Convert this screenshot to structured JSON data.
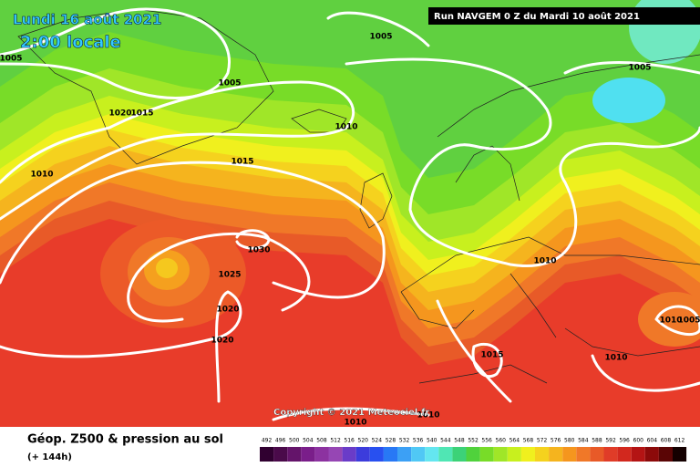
{
  "header": {
    "date": "Lundi 16 août 2021",
    "time": "2:00 locale",
    "run": "Run NAVGEM 0 Z du Mardi 10 août 2021"
  },
  "copyright": "Copyright © 2021 Meteociel.fr",
  "isobar_labels": [
    1005,
    1005,
    1005,
    1020,
    1015,
    1010,
    1010,
    1005,
    1015,
    1030,
    1025,
    1020,
    1020,
    1010,
    1015,
    1010,
    1010,
    1005,
    1010,
    1010
  ],
  "footer": {
    "title": "Géop. Z500 & pression au sol",
    "lead": "(+ 144h)"
  },
  "colorbar": [
    {
      "value": 492,
      "color": "#300030"
    },
    {
      "value": 496,
      "color": "#4a0a4a"
    },
    {
      "value": 500,
      "color": "#64146a"
    },
    {
      "value": 504,
      "color": "#7a1e8a"
    },
    {
      "value": 508,
      "color": "#8c32a0"
    },
    {
      "value": 512,
      "color": "#9646b4"
    },
    {
      "value": 516,
      "color": "#6a3cc8"
    },
    {
      "value": 520,
      "color": "#3c3cdc"
    },
    {
      "value": 524,
      "color": "#2850f0"
    },
    {
      "value": 528,
      "color": "#2878f5"
    },
    {
      "value": 532,
      "color": "#3ca0f5"
    },
    {
      "value": 536,
      "color": "#50c8f5"
    },
    {
      "value": 540,
      "color": "#64e6f0"
    },
    {
      "value": 544,
      "color": "#50e6b4"
    },
    {
      "value": 548,
      "color": "#3cd278"
    },
    {
      "value": 552,
      "color": "#50d23c"
    },
    {
      "value": 556,
      "color": "#78dc28"
    },
    {
      "value": 560,
      "color": "#a0e628"
    },
    {
      "value": 564,
      "color": "#c8f01e"
    },
    {
      "value": 568,
      "color": "#f0f01e"
    },
    {
      "value": 572,
      "color": "#f5d21e"
    },
    {
      "value": 576,
      "color": "#f5b41e"
    },
    {
      "value": 580,
      "color": "#f5961e"
    },
    {
      "value": 584,
      "color": "#f07828"
    },
    {
      "value": 588,
      "color": "#e85a28"
    },
    {
      "value": 592,
      "color": "#e03c28"
    },
    {
      "value": 596,
      "color": "#d2281e"
    },
    {
      "value": 600,
      "color": "#b41414"
    },
    {
      "value": 604,
      "color": "#8c0a0a"
    },
    {
      "value": 608,
      "color": "#5a0505"
    },
    {
      "value": 612,
      "color": "#140000"
    }
  ]
}
